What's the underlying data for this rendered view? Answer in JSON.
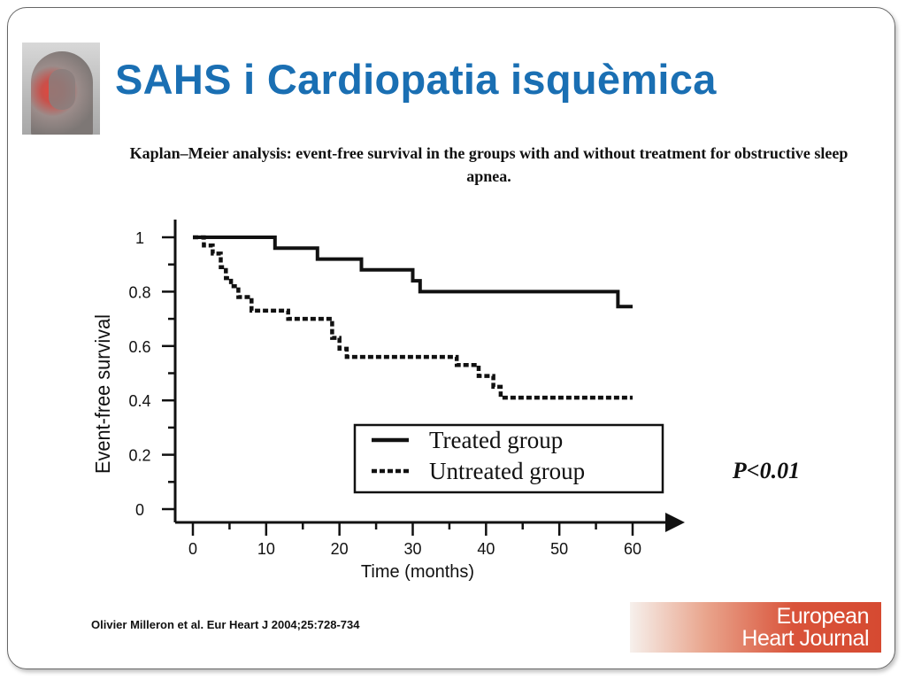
{
  "slide": {
    "title": "SAHS i Cardiopatia isquèmica",
    "caption": "Kaplan–Meier analysis: event-free survival in the groups with and without treatment for obstructive sleep apnea.",
    "citation": "Olivier Milleron et al. Eur Heart J 2004;25:728-734",
    "logo_line1": "European",
    "logo_line2": "Heart Journal",
    "title_color": "#1a6fb3"
  },
  "chart_data": {
    "type": "line",
    "subtype": "kaplan-meier step",
    "xlabel": "Time (months)",
    "ylabel": "Event-free survival",
    "xlim": [
      0,
      60
    ],
    "ylim": [
      0,
      1
    ],
    "xticks": [
      "0",
      "10",
      "20",
      "30",
      "40",
      "50",
      "60"
    ],
    "yticks": [
      "0",
      "0.2",
      "0.4",
      "0.6",
      "0.8",
      "1"
    ],
    "grid": false,
    "legend_position": "bottom-right",
    "annotation": "P<0.01",
    "series": [
      {
        "name": "Treated group",
        "style": "solid",
        "points": [
          [
            0,
            1
          ],
          [
            11.2,
            1
          ],
          [
            11.2,
            0.96
          ],
          [
            17,
            0.96
          ],
          [
            17,
            0.92
          ],
          [
            23,
            0.92
          ],
          [
            23,
            0.88
          ],
          [
            30,
            0.88
          ],
          [
            30,
            0.84
          ],
          [
            31,
            0.84
          ],
          [
            31,
            0.8
          ],
          [
            58,
            0.8
          ],
          [
            58,
            0.745
          ],
          [
            60,
            0.745
          ]
        ]
      },
      {
        "name": "Untreated group",
        "style": "dashed",
        "points": [
          [
            0,
            1
          ],
          [
            1.5,
            1
          ],
          [
            1.5,
            0.97
          ],
          [
            2.7,
            0.97
          ],
          [
            2.7,
            0.94
          ],
          [
            3.8,
            0.94
          ],
          [
            3.8,
            0.89
          ],
          [
            4.5,
            0.89
          ],
          [
            4.5,
            0.85
          ],
          [
            5.2,
            0.85
          ],
          [
            5.2,
            0.82
          ],
          [
            6.2,
            0.82
          ],
          [
            6.2,
            0.78
          ],
          [
            8,
            0.78
          ],
          [
            8,
            0.73
          ],
          [
            13,
            0.73
          ],
          [
            13,
            0.7
          ],
          [
            19,
            0.7
          ],
          [
            19,
            0.63
          ],
          [
            20,
            0.63
          ],
          [
            20,
            0.59
          ],
          [
            21,
            0.59
          ],
          [
            21,
            0.56
          ],
          [
            36,
            0.56
          ],
          [
            36,
            0.53
          ],
          [
            39,
            0.53
          ],
          [
            39,
            0.49
          ],
          [
            41,
            0.49
          ],
          [
            41,
            0.45
          ],
          [
            42,
            0.45
          ],
          [
            42,
            0.41
          ],
          [
            60,
            0.41
          ]
        ]
      }
    ]
  }
}
